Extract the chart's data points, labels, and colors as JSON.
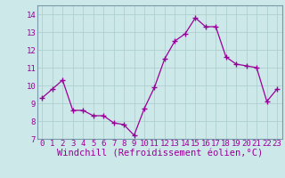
{
  "x": [
    0,
    1,
    2,
    3,
    4,
    5,
    6,
    7,
    8,
    9,
    10,
    11,
    12,
    13,
    14,
    15,
    16,
    17,
    18,
    19,
    20,
    21,
    22,
    23
  ],
  "y": [
    9.3,
    9.8,
    10.3,
    8.6,
    8.6,
    8.3,
    8.3,
    7.9,
    7.8,
    7.2,
    8.7,
    9.9,
    11.5,
    12.5,
    12.9,
    13.8,
    13.3,
    13.3,
    11.6,
    11.2,
    11.1,
    11.0,
    9.1,
    9.8
  ],
  "line_color": "#990099",
  "marker": "+",
  "marker_size": 4,
  "bg_color": "#cce8e8",
  "grid_color": "#aacccc",
  "xlabel": "Windchill (Refroidissement éolien,°C)",
  "ylim": [
    7,
    14.5
  ],
  "xlim": [
    -0.5,
    23.5
  ],
  "yticks": [
    7,
    8,
    9,
    10,
    11,
    12,
    13,
    14
  ],
  "xticks": [
    0,
    1,
    2,
    3,
    4,
    5,
    6,
    7,
    8,
    9,
    10,
    11,
    12,
    13,
    14,
    15,
    16,
    17,
    18,
    19,
    20,
    21,
    22,
    23
  ],
  "tick_label_color": "#990099",
  "tick_fontsize": 6.5,
  "xlabel_fontsize": 7.5,
  "xlabel_color": "#990099",
  "xlabel_fontfamily": "monospace",
  "spine_color": "#7799aa"
}
